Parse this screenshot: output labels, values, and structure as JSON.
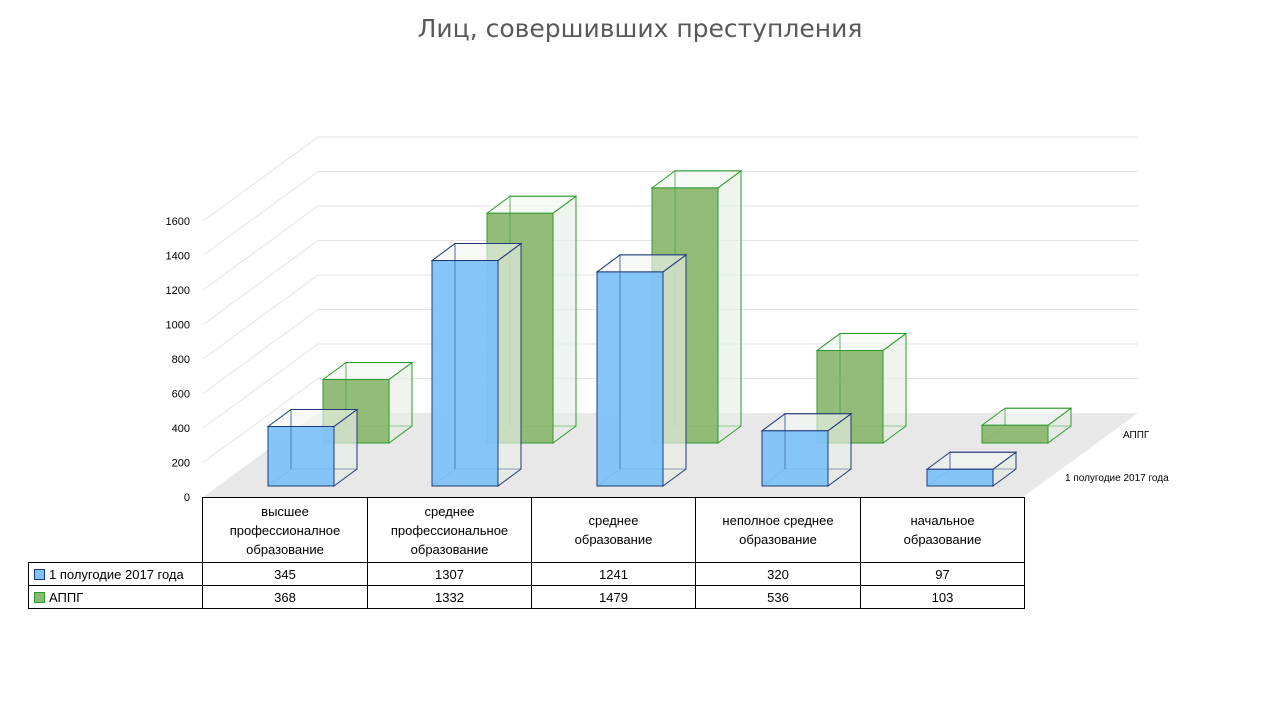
{
  "chart_data": {
    "type": "bar",
    "title": "Лиц, совершивших преступления",
    "categories": [
      "высшее профессионалное образование",
      "среднее профессиональное образование",
      "среднее образование",
      "неполное среднее образование",
      "начальное образование"
    ],
    "category_lines": [
      [
        "высшее",
        "профессионалное",
        "образование"
      ],
      [
        "среднее",
        "профессиональное",
        "образование"
      ],
      [
        "среднее",
        "образование"
      ],
      [
        "неполное среднее",
        "образование"
      ],
      [
        "начальное",
        "образование"
      ]
    ],
    "series": [
      {
        "name": "1 полугодие 2017 года",
        "values": [
          345,
          1307,
          1241,
          320,
          97
        ],
        "color": "#7EC2F8",
        "edge": "#1F3A7A"
      },
      {
        "name": "АППГ",
        "values": [
          368,
          1332,
          1479,
          536,
          103
        ],
        "color": "#8DB872",
        "edge": "#2E9A2E"
      }
    ],
    "ylim": [
      0,
      1600
    ],
    "yticks": [
      "0",
      "200",
      "400",
      "600",
      "800",
      "1000",
      "1200",
      "1400",
      "1600"
    ],
    "grid": true,
    "style": "3d-column",
    "legend": "data-table"
  }
}
